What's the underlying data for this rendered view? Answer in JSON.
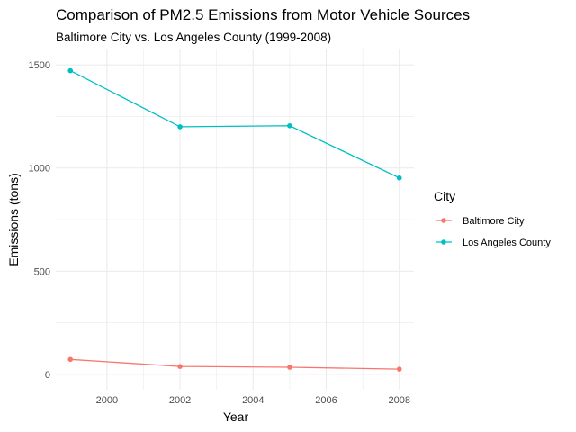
{
  "chart_data": {
    "type": "line",
    "title": "Comparison of PM2.5 Emissions from Motor Vehicle Sources",
    "subtitle": "Baltimore City vs. Los Angeles County (1999-2008)",
    "xlabel": "Year",
    "ylabel": "Emissions (tons)",
    "x": [
      1999,
      2002,
      2005,
      2008
    ],
    "xlim": [
      1998.6,
      2008.4
    ],
    "ylim": [
      -75,
      1575
    ],
    "x_ticks": [
      2000,
      2002,
      2004,
      2006,
      2008
    ],
    "y_ticks": [
      0,
      500,
      1000,
      1500
    ],
    "grid": true,
    "legend": {
      "title": "City",
      "placement": "right"
    },
    "series": [
      {
        "name": "Baltimore City",
        "color": "#F8766D",
        "values": [
          72,
          38,
          34,
          25
        ]
      },
      {
        "name": "Los Angeles County",
        "color": "#00BFC4",
        "values": [
          1472,
          1200,
          1205,
          952
        ]
      }
    ]
  }
}
